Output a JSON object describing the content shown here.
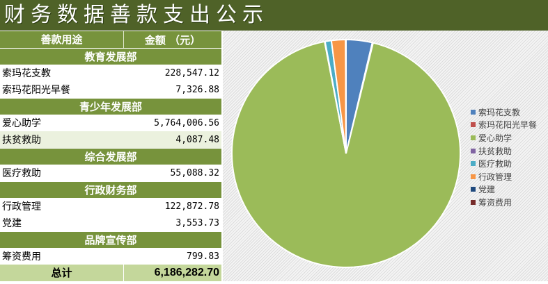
{
  "title": "财务数据善款支出公示",
  "table": {
    "col1": "善款用途",
    "col2": "金额 （元）",
    "sections": [
      {
        "name": "教育发展部",
        "items": [
          {
            "label": "索玛花支教",
            "value": "228,547.12"
          },
          {
            "label": "索玛花阳光早餐",
            "value": "7,326.88"
          }
        ]
      },
      {
        "name": "青少年发展部",
        "items": [
          {
            "label": "爱心助学",
            "value": "5,764,006.56"
          },
          {
            "label": "扶贫救助",
            "value": "4,087.48"
          }
        ]
      },
      {
        "name": "综合发展部",
        "items": [
          {
            "label": "医疗救助",
            "value": "55,088.32"
          }
        ]
      },
      {
        "name": "行政财务部",
        "items": [
          {
            "label": "行政管理",
            "value": "122,872.78"
          },
          {
            "label": "党建",
            "value": "3,553.73"
          }
        ]
      },
      {
        "name": "品牌宣传部",
        "items": [
          {
            "label": "筹资费用",
            "value": "799.83"
          }
        ]
      }
    ],
    "total_label": "总计",
    "total_value": "6,186,282.70"
  },
  "chart_data": {
    "type": "pie",
    "categories": [
      "索玛花支教",
      "索玛花阳光早餐",
      "爱心助学",
      "扶贫救助",
      "医疗救助",
      "行政管理",
      "党建",
      "筹资费用"
    ],
    "values": [
      228547.12,
      7326.88,
      5764006.56,
      4087.48,
      55088.32,
      122872.78,
      3553.73,
      799.83
    ],
    "colors": [
      "#4f81bd",
      "#c0504d",
      "#9bbb59",
      "#8064a2",
      "#4bacc6",
      "#f79646",
      "#1f497d",
      "#772c2a"
    ],
    "legend": "right"
  }
}
